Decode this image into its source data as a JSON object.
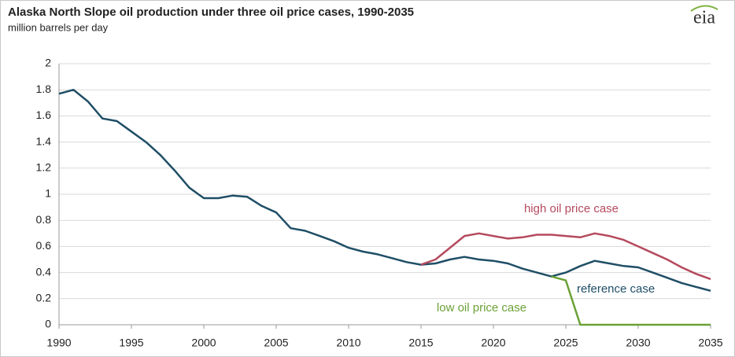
{
  "chart_data": {
    "type": "line",
    "title": "Alaska North Slope oil production under three oil price cases, 1990-2035",
    "subtitle": "million barrels per day",
    "logo": "eia",
    "x": [
      1990,
      1991,
      1992,
      1993,
      1994,
      1995,
      1996,
      1997,
      1998,
      1999,
      2000,
      2001,
      2002,
      2003,
      2004,
      2005,
      2006,
      2007,
      2008,
      2009,
      2010,
      2011,
      2012,
      2013,
      2014,
      2015,
      2016,
      2017,
      2018,
      2019,
      2020,
      2021,
      2022,
      2023,
      2024,
      2025,
      2026,
      2027,
      2028,
      2029,
      2030,
      2031,
      2032,
      2033,
      2034,
      2035
    ],
    "series": [
      {
        "name": "reference case",
        "color": "#1f4e66",
        "values": [
          1.77,
          1.8,
          1.71,
          1.58,
          1.56,
          1.48,
          1.4,
          1.3,
          1.18,
          1.05,
          0.97,
          0.97,
          0.99,
          0.98,
          0.91,
          0.86,
          0.74,
          0.72,
          0.68,
          0.64,
          0.59,
          0.56,
          0.54,
          0.51,
          0.48,
          0.46,
          0.47,
          0.5,
          0.52,
          0.5,
          0.49,
          0.47,
          0.43,
          0.4,
          0.37,
          0.4,
          0.45,
          0.49,
          0.47,
          0.45,
          0.44,
          0.4,
          0.36,
          0.32,
          0.29,
          0.26
        ]
      },
      {
        "name": "high oil price case",
        "color": "#b54a5e",
        "values": [
          null,
          null,
          null,
          null,
          null,
          null,
          null,
          null,
          null,
          null,
          null,
          null,
          null,
          null,
          null,
          null,
          null,
          null,
          null,
          null,
          null,
          null,
          null,
          null,
          null,
          0.46,
          0.5,
          0.59,
          0.68,
          0.7,
          0.68,
          0.66,
          0.67,
          0.69,
          0.69,
          0.68,
          0.67,
          0.7,
          0.68,
          0.65,
          0.6,
          0.55,
          0.5,
          0.44,
          0.39,
          0.35
        ]
      },
      {
        "name": "low oil price case",
        "color": "#6aa136",
        "values": [
          null,
          null,
          null,
          null,
          null,
          null,
          null,
          null,
          null,
          null,
          null,
          null,
          null,
          null,
          null,
          null,
          null,
          null,
          null,
          null,
          null,
          null,
          null,
          null,
          null,
          null,
          null,
          null,
          null,
          null,
          null,
          null,
          null,
          null,
          0.37,
          0.34,
          0,
          0,
          0,
          0,
          0,
          0,
          0,
          0,
          0,
          0
        ]
      }
    ],
    "xlim": [
      1990,
      2035
    ],
    "xticks": [
      1990,
      1995,
      2000,
      2005,
      2010,
      2015,
      2020,
      2025,
      2030,
      2035
    ],
    "ylim": [
      0,
      2
    ],
    "yticks": [
      0,
      {
        "value": 0.2,
        "label": "0.2"
      },
      {
        "value": 0.4,
        "label": "0.4"
      },
      {
        "value": 0.6,
        "label": "0.6"
      },
      {
        "value": 0.8,
        "label": "0.8"
      },
      1,
      {
        "value": 1.2,
        "label": "1.2"
      },
      {
        "value": 1.4,
        "label": "1.4"
      },
      {
        "value": 1.6,
        "label": "1.6"
      },
      {
        "value": 1.8,
        "label": "1.8"
      },
      2
    ],
    "grid": true
  }
}
